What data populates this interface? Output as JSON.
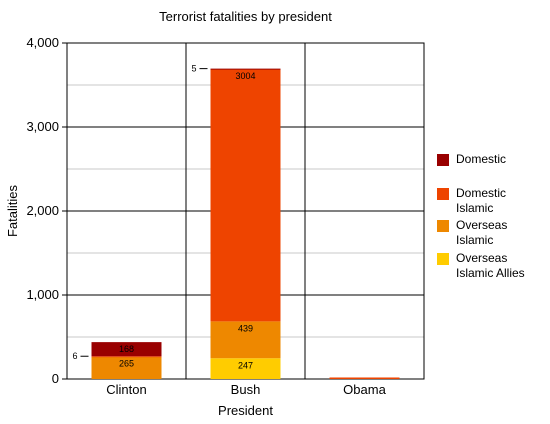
{
  "chart_data": {
    "type": "bar",
    "stacked": true,
    "title": "Terrorist fatalities by president",
    "xlabel": "President",
    "ylabel": "Fatalities",
    "ylim": [
      0,
      4000
    ],
    "major_ticks": [
      0,
      1000,
      2000,
      3000,
      4000
    ],
    "tick_labels": [
      "0",
      "1,000",
      "2,000",
      "3,000",
      "4,000"
    ],
    "minor_grid_step": 500,
    "grid": true,
    "legend_position": "right",
    "categories": [
      "Clinton",
      "Bush",
      "Obama"
    ],
    "series": [
      {
        "name": "Overseas Islamic Allies",
        "color": "#ffcc00",
        "values": [
          0,
          247,
          0
        ]
      },
      {
        "name": "Overseas Islamic",
        "color": "#ee8800",
        "values": [
          265,
          439,
          0
        ]
      },
      {
        "name": "Domestic Islamic",
        "color": "#ee4400",
        "values": [
          6,
          3004,
          18
        ]
      },
      {
        "name": "Domestic",
        "color": "#990000",
        "values": [
          168,
          5,
          0
        ]
      }
    ],
    "data_labels": [
      {
        "category": "Clinton",
        "series": "Overseas Islamic",
        "text": "265",
        "placement": "inside-top"
      },
      {
        "category": "Clinton",
        "series": "Domestic",
        "text": "168",
        "placement": "inside-center"
      },
      {
        "category": "Clinton",
        "series": "Domestic Islamic",
        "text": "6",
        "placement": "leader-left"
      },
      {
        "category": "Bush",
        "series": "Overseas Islamic Allies",
        "text": "247",
        "placement": "inside-top"
      },
      {
        "category": "Bush",
        "series": "Overseas Islamic",
        "text": "439",
        "placement": "inside-top"
      },
      {
        "category": "Bush",
        "series": "Domestic Islamic",
        "text": "3004",
        "placement": "inside-top"
      },
      {
        "category": "Bush",
        "series": "Domestic",
        "text": "5",
        "placement": "leader-left"
      }
    ],
    "legend_order": [
      "Domestic",
      "Domestic Islamic",
      "Overseas Islamic",
      "Overseas Islamic Allies"
    ]
  }
}
